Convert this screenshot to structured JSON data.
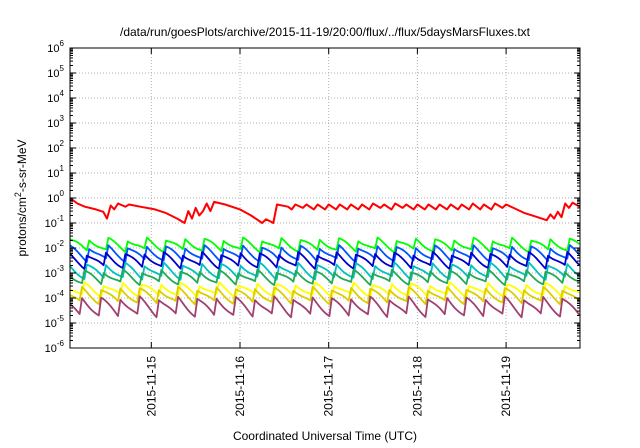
{
  "chart_data": {
    "type": "line",
    "title": "/data/run/goesPlots/archive/2015-11-19/20:00/flux/../flux/5daysMarsFluxes.txt",
    "xlabel": "Coordinated Universal Time (UTC)",
    "ylabel": "protons/cm²-s-sr-MeV",
    "y_scale": "log",
    "ylim": [
      1e-06,
      1000000.0
    ],
    "xlim": [
      "2015-11-14T02:00",
      "2015-11-19T20:00"
    ],
    "grid": true,
    "x_ticks": [
      "2015-11-15",
      "2015-11-16",
      "2015-11-17",
      "2015-11-18",
      "2015-11-19"
    ],
    "y_ticks": [
      {
        "base": "10",
        "exp": "-6"
      },
      {
        "base": "10",
        "exp": "-5"
      },
      {
        "base": "10",
        "exp": "-4"
      },
      {
        "base": "10",
        "exp": "-3"
      },
      {
        "base": "10",
        "exp": "-2"
      },
      {
        "base": "10",
        "exp": "-1"
      },
      {
        "base": "10",
        "exp": "0"
      },
      {
        "base": "10",
        "exp": "1"
      },
      {
        "base": "10",
        "exp": "2"
      },
      {
        "base": "10",
        "exp": "3"
      },
      {
        "base": "10",
        "exp": "4"
      },
      {
        "base": "10",
        "exp": "5"
      },
      {
        "base": "10",
        "exp": "6"
      }
    ],
    "sawtooth_period_hours": 5.2,
    "series": [
      {
        "color": "#00ff00",
        "high": 0.022,
        "low": 0.007
      },
      {
        "color": "#0055ff",
        "high": 0.012,
        "low": 0.003
      },
      {
        "color": "#0000cc",
        "high": 0.006,
        "low": 0.0015
      },
      {
        "color": "#00c0c0",
        "high": 0.0025,
        "low": 0.0006
      },
      {
        "color": "#22aa55",
        "high": 0.0012,
        "low": 0.00035
      },
      {
        "color": "#ffff00",
        "high": 0.0004,
        "low": 0.00012
      },
      {
        "color": "#ddcc00",
        "high": 0.00025,
        "low": 6e-05
      },
      {
        "color": "#a04070",
        "high": 0.00012,
        "low": 2e-05
      }
    ],
    "red_series": {
      "color": "#ff0000",
      "points": [
        [
          "2015-11-14T02:00",
          1.0
        ],
        [
          "2015-11-14T04:00",
          0.6
        ],
        [
          "2015-11-14T06:00",
          0.45
        ],
        [
          "2015-11-14T09:00",
          0.35
        ],
        [
          "2015-11-14T11:00",
          0.28
        ],
        [
          "2015-11-14T12:00",
          0.15
        ],
        [
          "2015-11-14T13:00",
          0.5
        ],
        [
          "2015-11-14T14:00",
          0.35
        ],
        [
          "2015-11-14T15:00",
          0.6
        ],
        [
          "2015-11-14T17:00",
          0.45
        ],
        [
          "2015-11-14T18:00",
          0.55
        ],
        [
          "2015-11-14T21:00",
          0.45
        ],
        [
          "2015-11-15T01:00",
          0.35
        ],
        [
          "2015-11-15T04:00",
          0.25
        ],
        [
          "2015-11-15T07:00",
          0.15
        ],
        [
          "2015-11-15T09:00",
          0.1
        ],
        [
          "2015-11-15T10:00",
          0.3
        ],
        [
          "2015-11-15T11:00",
          0.15
        ],
        [
          "2015-11-15T12:00",
          0.4
        ],
        [
          "2015-11-15T13:00",
          0.2
        ],
        [
          "2015-11-15T14:00",
          0.3
        ],
        [
          "2015-11-15T15:00",
          0.6
        ],
        [
          "2015-11-15T16:00",
          0.3
        ],
        [
          "2015-11-15T17:00",
          0.7
        ],
        [
          "2015-11-15T20:00",
          0.55
        ],
        [
          "2015-11-16T00:00",
          0.35
        ],
        [
          "2015-11-16T03:00",
          0.2
        ],
        [
          "2015-11-16T06:00",
          0.1
        ],
        [
          "2015-11-16T07:00",
          0.14
        ],
        [
          "2015-11-16T08:00",
          0.12
        ],
        [
          "2015-11-16T09:00",
          0.1
        ],
        [
          "2015-11-16T10:00",
          0.55
        ],
        [
          "2015-11-16T13:00",
          0.45
        ],
        [
          "2015-11-16T14:00",
          0.35
        ],
        [
          "2015-11-16T15:00",
          0.55
        ],
        [
          "2015-11-16T17:00",
          0.4
        ],
        [
          "2015-11-16T18:00",
          0.55
        ],
        [
          "2015-11-16T20:00",
          0.35
        ],
        [
          "2015-11-16T21:00",
          0.55
        ],
        [
          "2015-11-16T23:00",
          0.35
        ],
        [
          "2015-11-17T00:00",
          0.55
        ],
        [
          "2015-11-17T02:00",
          0.35
        ],
        [
          "2015-11-17T03:00",
          0.55
        ],
        [
          "2015-11-17T05:00",
          0.35
        ],
        [
          "2015-11-17T06:00",
          0.55
        ],
        [
          "2015-11-17T08:00",
          0.35
        ],
        [
          "2015-11-17T09:00",
          0.55
        ],
        [
          "2015-11-17T11:00",
          0.35
        ],
        [
          "2015-11-17T12:00",
          0.6
        ],
        [
          "2015-11-17T14:00",
          0.4
        ],
        [
          "2015-11-17T15:00",
          0.55
        ],
        [
          "2015-11-17T17:00",
          0.35
        ],
        [
          "2015-11-17T18:00",
          0.6
        ],
        [
          "2015-11-17T20:00",
          0.4
        ],
        [
          "2015-11-17T21:00",
          0.55
        ],
        [
          "2015-11-17T23:00",
          0.35
        ],
        [
          "2015-11-18T00:00",
          0.55
        ],
        [
          "2015-11-18T02:00",
          0.35
        ],
        [
          "2015-11-18T03:00",
          0.55
        ],
        [
          "2015-11-18T05:00",
          0.35
        ],
        [
          "2015-11-18T06:00",
          0.55
        ],
        [
          "2015-11-18T08:00",
          0.35
        ],
        [
          "2015-11-18T09:00",
          0.55
        ],
        [
          "2015-11-18T11:00",
          0.35
        ],
        [
          "2015-11-18T12:00",
          0.55
        ],
        [
          "2015-11-18T14:00",
          0.35
        ],
        [
          "2015-11-18T15:00",
          0.6
        ],
        [
          "2015-11-18T17:00",
          0.35
        ],
        [
          "2015-11-18T18:00",
          0.55
        ],
        [
          "2015-11-18T20:00",
          0.35
        ],
        [
          "2015-11-18T21:00",
          0.6
        ],
        [
          "2015-11-18T23:00",
          0.4
        ],
        [
          "2015-11-19T00:00",
          0.55
        ],
        [
          "2015-11-19T02:00",
          0.4
        ],
        [
          "2015-11-19T05:00",
          0.25
        ],
        [
          "2015-11-19T08:00",
          0.18
        ],
        [
          "2015-11-19T11:00",
          0.13
        ],
        [
          "2015-11-19T12:00",
          0.22
        ],
        [
          "2015-11-19T13:00",
          0.15
        ],
        [
          "2015-11-19T14:00",
          0.28
        ],
        [
          "2015-11-19T15:00",
          0.17
        ],
        [
          "2015-11-19T16:00",
          0.6
        ],
        [
          "2015-11-19T17:00",
          0.4
        ],
        [
          "2015-11-19T18:00",
          0.65
        ],
        [
          "2015-11-19T20:00",
          0.45
        ]
      ]
    }
  }
}
